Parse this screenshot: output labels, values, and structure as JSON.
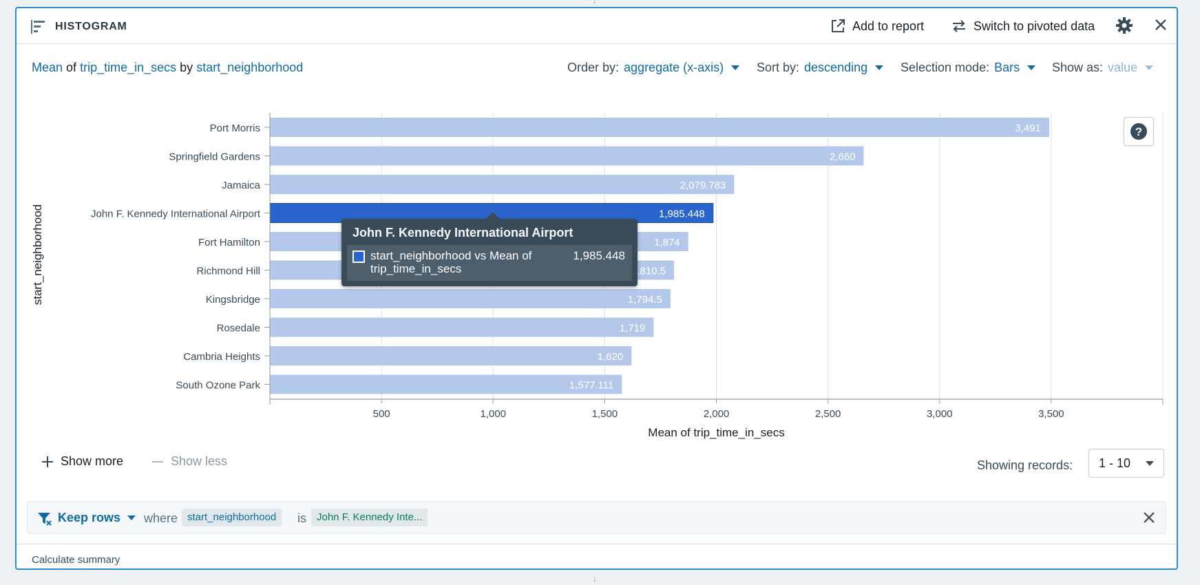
{
  "header": {
    "title": "HISTOGRAM",
    "add_to_report": "Add to report",
    "switch_pivoted": "Switch to pivoted data"
  },
  "subheader": {
    "agg_fn": "Mean",
    "of_word": "of",
    "metric": "trip_time_in_secs",
    "by_word": "by",
    "group": "start_neighborhood",
    "order_label": "Order by:",
    "order_value": "aggregate (x-axis)",
    "sort_label": "Sort by:",
    "sort_value": "descending",
    "selection_label": "Selection mode:",
    "selection_value": "Bars",
    "show_label": "Show as:",
    "show_value": "value"
  },
  "chart_data": {
    "type": "bar",
    "orientation": "horizontal",
    "categories": [
      "Port Morris",
      "Springfield Gardens",
      "Jamaica",
      "John F. Kennedy International Airport",
      "Fort Hamilton",
      "Richmond Hill",
      "Kingsbridge",
      "Rosedale",
      "Cambria Heights",
      "South Ozone Park"
    ],
    "values": [
      3491,
      2660,
      2079.783,
      1985.448,
      1874,
      1810.5,
      1794.5,
      1719,
      1620,
      1577.111
    ],
    "value_labels": [
      "3,491",
      "2,660",
      "2,079.783",
      "1,985.448",
      "1,874",
      "1,810.5",
      "1,794.5",
      "1,719",
      "1,620",
      "1,577.111"
    ],
    "selected_index": 3,
    "xlabel": "Mean of trip_time_in_secs",
    "ylabel": "start_neighborhood",
    "xlim": [
      0,
      4000
    ],
    "xticks": [
      500,
      1000,
      1500,
      2000,
      2500,
      3000,
      3500
    ],
    "xtick_labels": [
      "500",
      "1,000",
      "1,500",
      "2,000",
      "2,500",
      "3,000",
      "3,500"
    ],
    "grid": true,
    "colors": {
      "bar": "#b3c8ea",
      "selected": "#2965cc",
      "label": "#ffffff"
    }
  },
  "tooltip": {
    "title": "John F. Kennedy International Airport",
    "series_label": "start_neighborhood vs Mean of trip_time_in_secs",
    "value": "1,985.448"
  },
  "show": {
    "more": "Show more",
    "less": "Show less",
    "records_label": "Showing records:",
    "records_value": "1 - 10"
  },
  "filter": {
    "action": "Keep rows",
    "where": "where",
    "column": "start_neighborhood",
    "is": "is",
    "value": "John F. Kennedy Inte..."
  },
  "footer": {
    "calculate": "Calculate summary"
  }
}
